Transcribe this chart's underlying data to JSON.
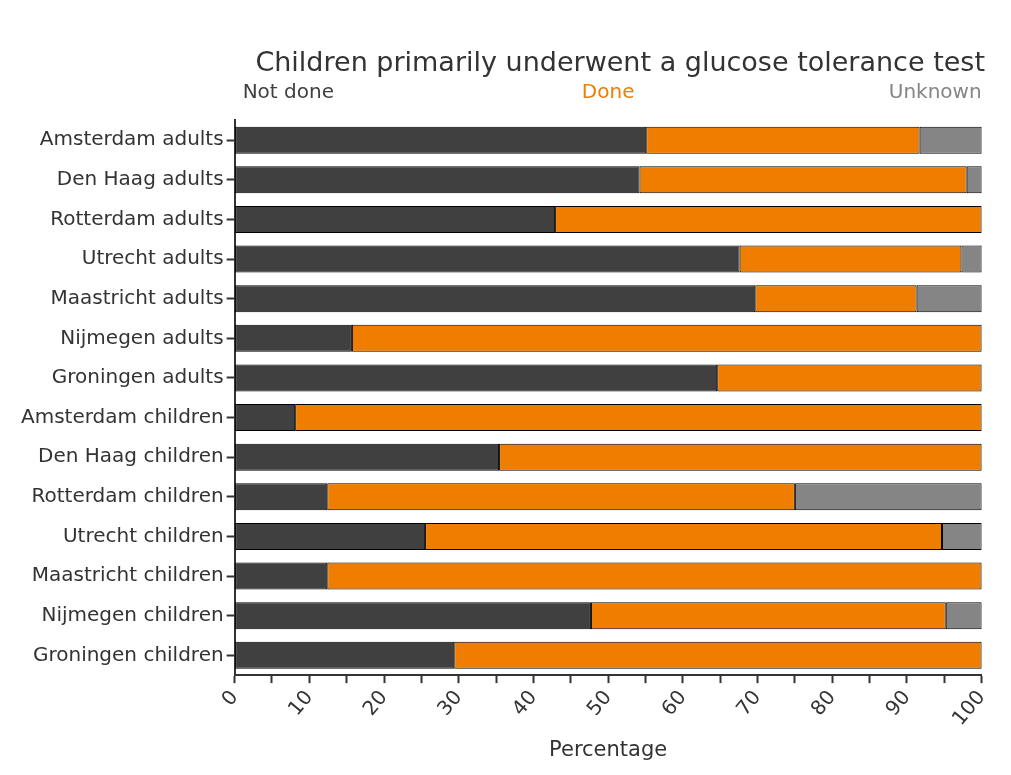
{
  "chart_data": {
    "type": "bar",
    "orientation": "horizontal",
    "stacked": true,
    "title": "Children primarily underwent a glucose tolerance test",
    "xlabel": "Percentage",
    "categories": [
      "Amsterdam adults",
      "Den Haag adults",
      "Rotterdam adults",
      "Utrecht adults",
      "Maastricht adults",
      "Nijmegen adults",
      "Groningen adults",
      "Amsterdam children",
      "Den Haag children",
      "Rotterdam children",
      "Utrecht children",
      "Maastricht children",
      "Nijmegen children",
      "Groningen children"
    ],
    "series": [
      {
        "name": "Not done",
        "color": "#404040",
        "values": [
          55.1,
          54.2,
          42.9,
          67.6,
          69.7,
          15.7,
          64.6,
          8.1,
          35.4,
          12.4,
          25.5,
          12.4,
          47.7,
          29.4
        ]
      },
      {
        "name": "Done",
        "color": "#ef7d00",
        "values": [
          36.6,
          43.8,
          57.1,
          29.7,
          21.6,
          84.3,
          35.4,
          91.9,
          64.6,
          62.6,
          69.2,
          87.6,
          47.5,
          70.6
        ]
      },
      {
        "name": "Unknown",
        "color": "#858585",
        "values": [
          8.3,
          2.0,
          0,
          2.7,
          8.7,
          0,
          0,
          0,
          0,
          25.0,
          5.3,
          0,
          4.8,
          0
        ]
      }
    ],
    "xlim": [
      0,
      100
    ],
    "xticks": [
      0,
      {
        "value": 5,
        "label": null
      },
      10,
      {
        "value": 15,
        "label": null
      },
      20,
      {
        "value": 25,
        "label": null
      },
      30,
      {
        "value": 35,
        "label": null
      },
      40,
      {
        "value": 45,
        "label": null
      },
      50,
      {
        "value": 55,
        "label": null
      },
      60,
      {
        "value": 65,
        "label": null
      },
      70,
      {
        "value": 75,
        "label": null
      },
      80,
      {
        "value": 85,
        "label": null
      },
      90,
      {
        "value": 95,
        "label": null
      },
      100
    ],
    "legend": "top",
    "grid": false
  }
}
